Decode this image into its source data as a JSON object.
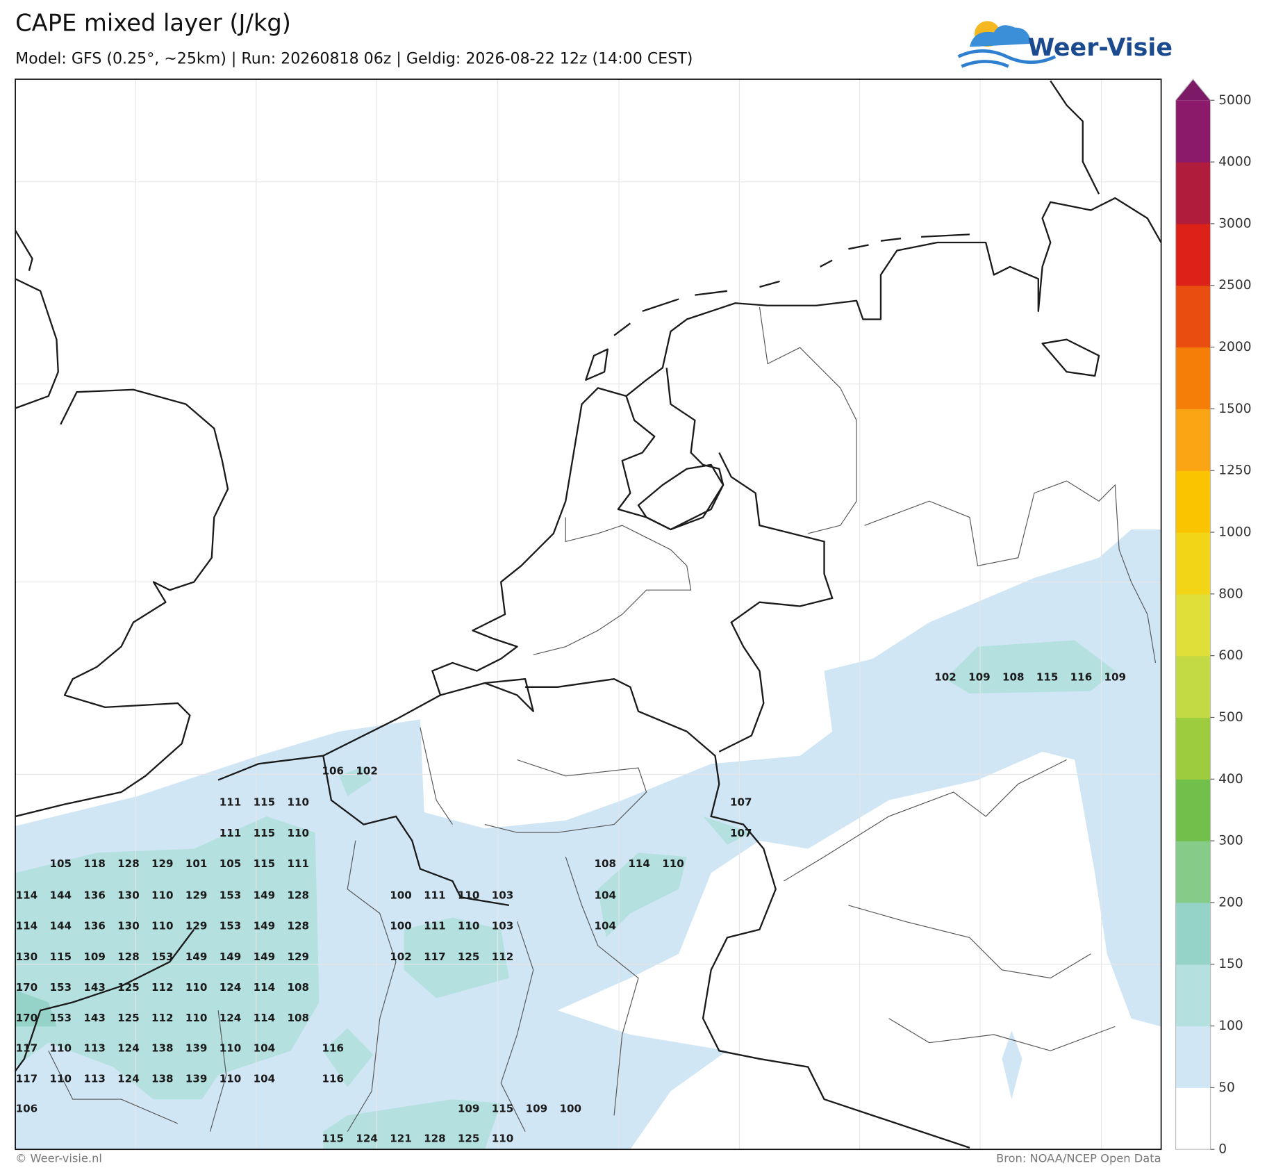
{
  "header": {
    "title": "CAPE mixed layer (J/kg)",
    "subtitle": "Model: GFS (0.25°, ~25km)  |  Run: 20260818 06z  |  Geldig: 2026-08-22 12z (14:00 CEST)",
    "logo": "Weer-Visie"
  },
  "colorbar": {
    "levels": [
      0,
      50,
      100,
      150,
      200,
      300,
      400,
      500,
      600,
      800,
      1000,
      1250,
      1500,
      2000,
      2500,
      3000,
      4000,
      5000
    ],
    "colors": [
      "#ffffff",
      "#d0e6f5",
      "#b4e0df",
      "#95d3c8",
      "#86cb88",
      "#72bf4c",
      "#9dcc3f",
      "#c4da45",
      "#e0df3a",
      "#f3d517",
      "#fbc400",
      "#fba414",
      "#f57e08",
      "#e94e10",
      "#dc2118",
      "#b01c3b",
      "#8b1a6b"
    ],
    "extend_color": "#7d1a67"
  },
  "labels": [
    [
      106,
      102
    ],
    [
      111,
      115,
      110
    ],
    [
      107
    ],
    [
      111,
      115,
      110
    ],
    [
      107
    ],
    [
      105,
      118,
      128,
      129,
      101,
      105,
      115,
      111
    ],
    [
      108,
      114,
      110
    ],
    [
      114,
      144,
      136,
      130,
      110,
      129,
      153,
      149,
      128
    ],
    [
      100,
      111,
      110,
      103
    ],
    [
      104
    ],
    [
      114,
      144,
      136,
      130,
      110,
      129,
      153,
      149,
      128
    ],
    [
      100,
      111,
      110,
      103
    ],
    [
      104
    ],
    [
      130,
      115,
      109,
      128,
      153,
      149,
      149,
      149,
      129
    ],
    [
      102,
      117,
      125,
      112
    ],
    [
      170,
      153,
      143,
      125,
      112,
      110,
      124,
      114,
      108
    ],
    [
      170,
      153,
      143,
      125,
      112,
      110,
      124,
      114,
      108
    ],
    [
      117,
      110,
      113,
      124,
      138,
      139,
      110,
      104
    ],
    [
      116
    ],
    [
      117,
      110,
      113,
      124,
      138,
      139,
      110,
      104
    ],
    [
      116
    ],
    [
      106
    ],
    [
      109,
      115,
      109,
      100
    ],
    [
      115,
      124,
      121,
      128,
      125,
      110
    ],
    [
      102,
      109,
      108,
      115,
      116,
      109
    ]
  ],
  "footer": {
    "left": "© Weer-visie.nl",
    "right": "Bron: NOAA/NCEP Open Data"
  }
}
